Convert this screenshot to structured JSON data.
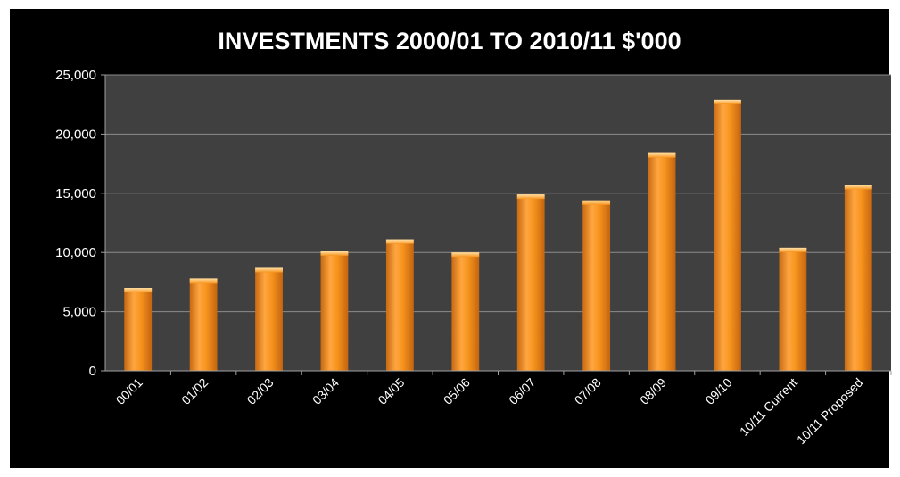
{
  "chart_data": {
    "type": "bar",
    "title": "INVESTMENTS 2000/01 TO 2010/11 $'000",
    "xlabel": "",
    "ylabel": "",
    "categories": [
      "00/01",
      "01/02",
      "02/03",
      "03/04",
      "04/05",
      "05/06",
      "06/07",
      "07/08",
      "08/09",
      "09/10",
      "10/11 Current",
      "10/11 Proposed"
    ],
    "values": [
      7000,
      7800,
      8700,
      10100,
      11100,
      10000,
      14900,
      14400,
      18400,
      22900,
      10400,
      15700
    ],
    "ylim": [
      0,
      25000
    ],
    "yticks": [
      0,
      5000,
      10000,
      15000,
      20000,
      25000
    ],
    "ytick_labels": [
      "0",
      "5,000",
      "10,000",
      "15,000",
      "20,000",
      "25,000"
    ],
    "grid": true,
    "legend": "none",
    "colors": {
      "bar": "#f7941d",
      "bar_highlight": "#ffc875",
      "bar_shadow": "#d06f10",
      "plot_background": "#404040",
      "frame_background": "#000000",
      "gridline": "#8c8c8c",
      "text": "#ffffff"
    }
  }
}
